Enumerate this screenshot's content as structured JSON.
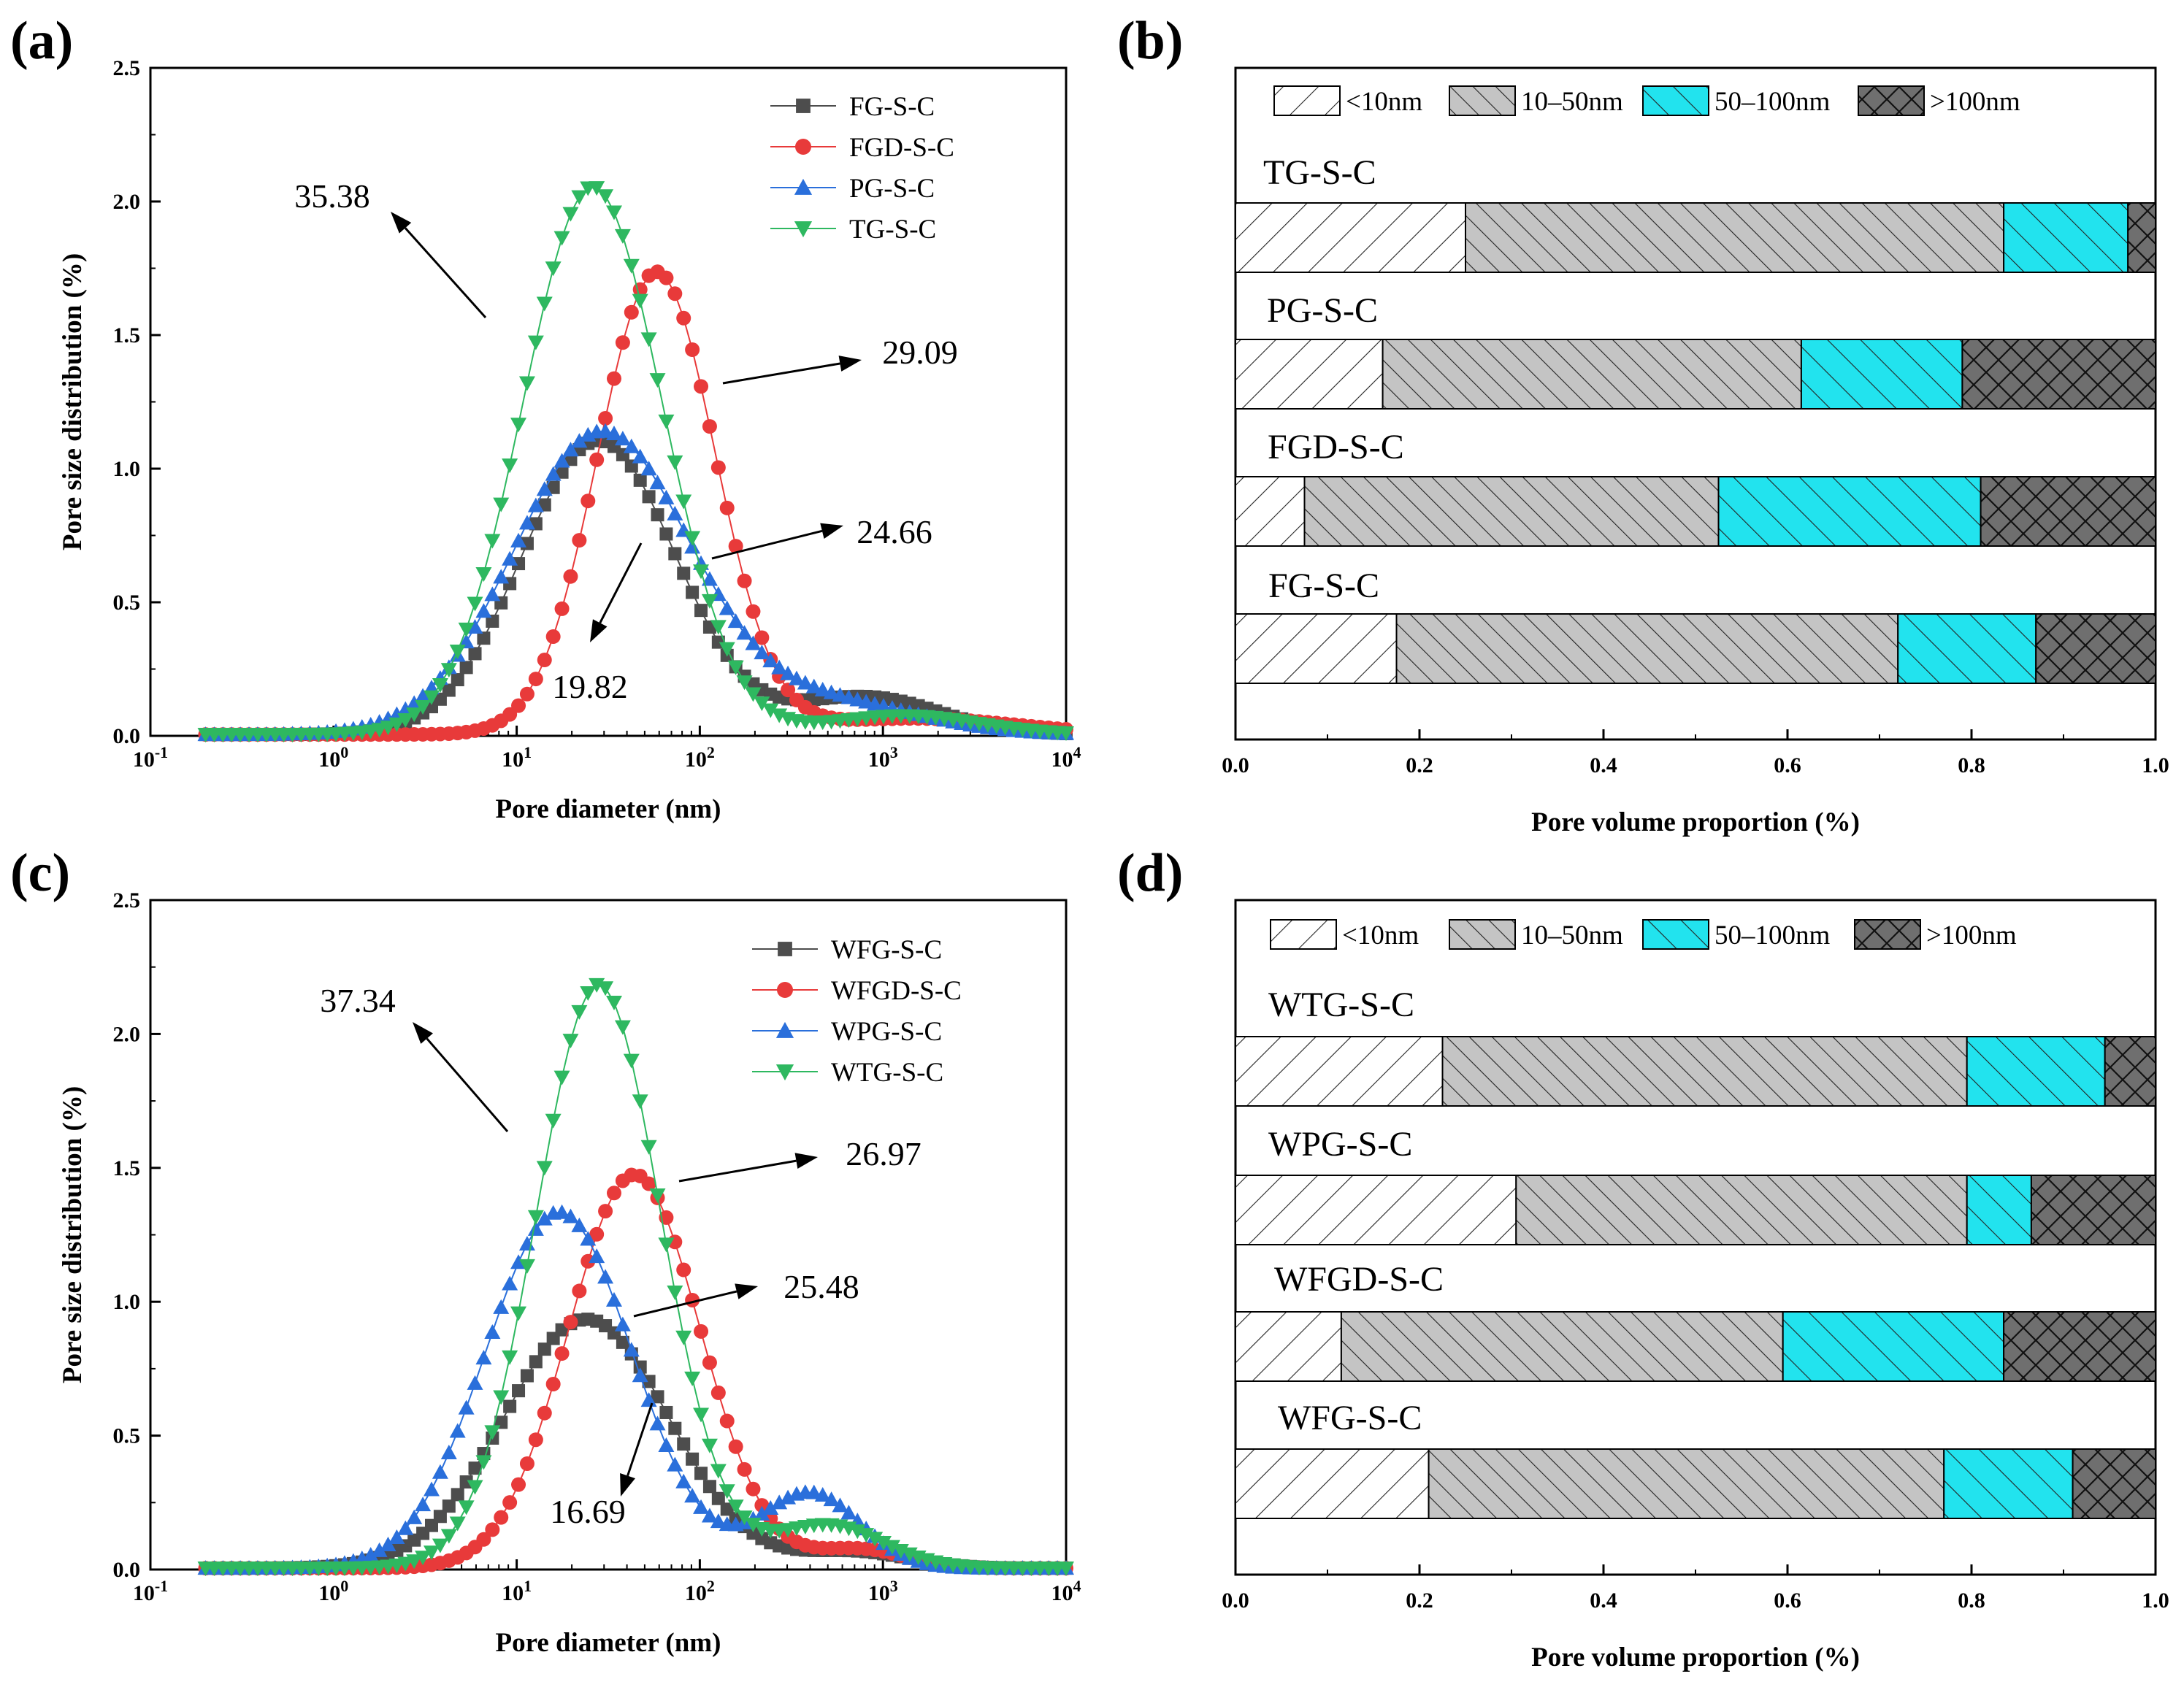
{
  "chart_data": [
    {
      "type": "line",
      "panel": "(a)",
      "xlabel": "Pore diameter (nm)",
      "ylabel": "Pore size distribution (%)",
      "xscale": "log",
      "xlim": [
        0.1,
        10000
      ],
      "ylim": [
        0,
        2.5
      ],
      "x_ticks": [
        "10-1",
        "100",
        "101",
        "102",
        "103",
        "104"
      ],
      "y_ticks": [
        "0.0",
        "0.5",
        "1.0",
        "1.5",
        "2.0",
        "2.5"
      ],
      "legend_position": "top-right",
      "series": [
        {
          "name": "FG-S-C",
          "color": "#4d4d4d",
          "marker": "square",
          "components": [
            {
              "peak": 28,
              "amp": 1.1,
              "sigma": 0.42
            },
            {
              "peak": 800,
              "amp": 0.14,
              "sigma": 0.4
            }
          ]
        },
        {
          "name": "FGD-S-C",
          "color": "#e83a3a",
          "marker": "circle",
          "components": [
            {
              "peak": 58,
              "amp": 1.73,
              "sigma": 0.32
            },
            {
              "peak": 1500,
              "amp": 0.06,
              "sigma": 0.55
            }
          ]
        },
        {
          "name": "PG-S-C",
          "color": "#2a6fdb",
          "marker": "triangle-up",
          "components": [
            {
              "peak": 29,
              "amp": 1.13,
              "sigma": 0.48
            },
            {
              "peak": 500,
              "amp": 0.12,
              "sigma": 0.5
            }
          ]
        },
        {
          "name": "TG-S-C",
          "color": "#2eb860",
          "marker": "triangle-down",
          "components": [
            {
              "peak": 26,
              "amp": 2.05,
              "sigma": 0.38
            },
            {
              "peak": 1300,
              "amp": 0.07,
              "sigma": 0.4
            }
          ]
        }
      ],
      "annotations": [
        "35.38",
        "29.09",
        "24.66",
        "19.82"
      ]
    },
    {
      "type": "bar",
      "panel": "(b)",
      "orientation": "horizontal",
      "stacked": true,
      "xlabel": "Pore volume proportion (%)",
      "xlim": [
        0,
        1.0
      ],
      "x_ticks": [
        "0.0",
        "0.2",
        "0.4",
        "0.6",
        "0.8",
        "1.0"
      ],
      "legend": [
        "<10nm",
        "10–50nm",
        "50–100nm",
        ">100nm"
      ],
      "categories": [
        "TG-S-C",
        "PG-S-C",
        "FGD-S-C",
        "FG-S-C"
      ],
      "series": [
        {
          "name": "<10nm",
          "values": [
            0.25,
            0.16,
            0.075,
            0.175
          ]
        },
        {
          "name": "10–50nm",
          "values": [
            0.585,
            0.455,
            0.45,
            0.545
          ]
        },
        {
          "name": "50–100nm",
          "values": [
            0.135,
            0.175,
            0.285,
            0.15
          ]
        },
        {
          "name": ">100nm",
          "values": [
            0.03,
            0.21,
            0.19,
            0.13
          ]
        }
      ]
    },
    {
      "type": "line",
      "panel": "(c)",
      "xlabel": "Pore diameter (nm)",
      "ylabel": "Pore size distribution (%)",
      "xscale": "log",
      "xlim": [
        0.1,
        10000
      ],
      "ylim": [
        0,
        2.5
      ],
      "x_ticks": [
        "10-1",
        "100",
        "101",
        "102",
        "103",
        "104"
      ],
      "y_ticks": [
        "0.0",
        "0.5",
        "1.0",
        "1.5",
        "2.0",
        "2.5"
      ],
      "legend_position": "top-right",
      "series": [
        {
          "name": "WFG-S-C",
          "color": "#4d4d4d",
          "marker": "square",
          "components": [
            {
              "peak": 24,
              "amp": 0.93,
              "sigma": 0.45
            },
            {
              "peak": 700,
              "amp": 0.06,
              "sigma": 0.3
            }
          ]
        },
        {
          "name": "WFGD-S-C",
          "color": "#e83a3a",
          "marker": "circle",
          "components": [
            {
              "peak": 44,
              "amp": 1.47,
              "sigma": 0.36
            },
            {
              "peak": 750,
              "amp": 0.07,
              "sigma": 0.25
            }
          ]
        },
        {
          "name": "WPG-S-C",
          "color": "#2a6fdb",
          "marker": "triangle-up",
          "components": [
            {
              "peak": 17,
              "amp": 1.33,
              "sigma": 0.4
            },
            {
              "peak": 400,
              "amp": 0.28,
              "sigma": 0.27
            }
          ]
        },
        {
          "name": "WTG-S-C",
          "color": "#2eb860",
          "marker": "triangle-down",
          "components": [
            {
              "peak": 28,
              "amp": 2.18,
              "sigma": 0.34
            },
            {
              "peak": 500,
              "amp": 0.16,
              "sigma": 0.3
            }
          ]
        }
      ],
      "annotations": [
        "37.34",
        "26.97",
        "25.48",
        "16.69"
      ]
    },
    {
      "type": "bar",
      "panel": "(d)",
      "orientation": "horizontal",
      "stacked": true,
      "xlabel": "Pore volume proportion (%)",
      "xlim": [
        0,
        1.0
      ],
      "x_ticks": [
        "0.0",
        "0.2",
        "0.4",
        "0.6",
        "0.8",
        "1.0"
      ],
      "legend": [
        "<10nm",
        "10–50nm",
        "50–100nm",
        ">100nm"
      ],
      "categories": [
        "WTG-S-C",
        "WPG-S-C",
        "WFGD-S-C",
        "WFG-S-C"
      ],
      "series": [
        {
          "name": "<10nm",
          "values": [
            0.225,
            0.305,
            0.115,
            0.21
          ]
        },
        {
          "name": "10–50nm",
          "values": [
            0.57,
            0.49,
            0.48,
            0.56
          ]
        },
        {
          "name": "50–100nm",
          "values": [
            0.15,
            0.07,
            0.24,
            0.14
          ]
        },
        {
          "name": ">100nm",
          "values": [
            0.055,
            0.135,
            0.165,
            0.09
          ]
        }
      ]
    }
  ]
}
